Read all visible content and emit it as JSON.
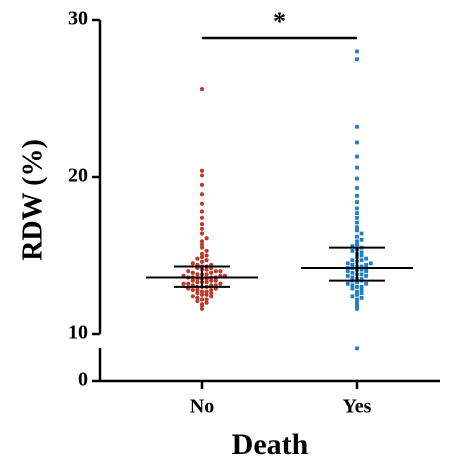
{
  "chart_data": {
    "type": "beeswarm",
    "xlabel": "Death",
    "ylabel": "RDW (%)",
    "categories": [
      "No",
      "Yes"
    ],
    "ylim_segments": [
      [
        0,
        9
      ],
      [
        10,
        30
      ]
    ],
    "yticks": [
      0,
      10,
      20,
      30
    ],
    "annotation": "*",
    "groups": [
      {
        "color": "#c0392b",
        "marker": "circle",
        "median": 13.6,
        "q1": 13.0,
        "q3": 14.3,
        "values": [
          11.6,
          11.8,
          11.9,
          12.0,
          12.1,
          12.2,
          12.2,
          12.3,
          12.4,
          12.4,
          12.5,
          12.5,
          12.6,
          12.6,
          12.7,
          12.7,
          12.8,
          12.8,
          12.8,
          12.9,
          12.9,
          13.0,
          13.0,
          13.0,
          13.1,
          13.1,
          13.1,
          13.2,
          13.2,
          13.2,
          13.3,
          13.3,
          13.3,
          13.4,
          13.4,
          13.4,
          13.5,
          13.5,
          13.5,
          13.6,
          13.6,
          13.6,
          13.6,
          13.7,
          13.7,
          13.7,
          13.8,
          13.8,
          13.8,
          13.9,
          13.9,
          14.0,
          14.0,
          14.0,
          14.1,
          14.1,
          14.2,
          14.2,
          14.3,
          14.3,
          14.4,
          14.4,
          14.5,
          14.6,
          14.7,
          14.8,
          14.9,
          15.0,
          15.1,
          15.3,
          15.5,
          15.7,
          15.9,
          16.1,
          16.4,
          16.7,
          17.0,
          17.4,
          17.8,
          18.3,
          18.9,
          19.5,
          20.1,
          20.4,
          25.6
        ]
      },
      {
        "color": "#1f7fc4",
        "marker": "square",
        "median": 14.2,
        "q1": 13.4,
        "q3": 15.5,
        "values": [
          8.9,
          11.6,
          11.8,
          12.0,
          12.2,
          12.3,
          12.4,
          12.5,
          12.6,
          12.7,
          12.8,
          12.9,
          13.0,
          13.0,
          13.1,
          13.2,
          13.2,
          13.3,
          13.4,
          13.4,
          13.5,
          13.5,
          13.6,
          13.7,
          13.7,
          13.8,
          13.8,
          13.9,
          14.0,
          14.0,
          14.1,
          14.1,
          14.2,
          14.2,
          14.2,
          14.3,
          14.3,
          14.4,
          14.4,
          14.5,
          14.5,
          14.6,
          14.7,
          14.7,
          14.8,
          14.9,
          15.0,
          15.1,
          15.2,
          15.3,
          15.4,
          15.5,
          15.6,
          15.7,
          15.9,
          16.0,
          16.2,
          16.4,
          16.6,
          16.8,
          17.1,
          17.4,
          17.7,
          18.0,
          18.4,
          18.8,
          19.3,
          19.9,
          20.6,
          21.3,
          22.2,
          23.2,
          27.5,
          28.0
        ]
      }
    ]
  }
}
